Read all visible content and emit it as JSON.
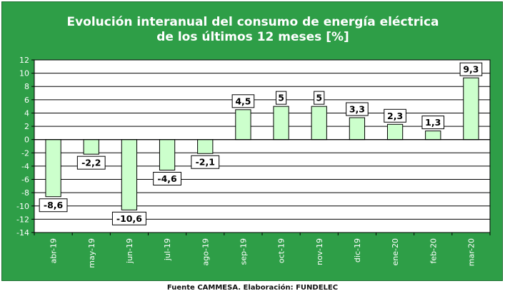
{
  "chart_data": {
    "type": "bar",
    "title_lines": [
      "Evolución interanual del consumo  de energía eléctrica",
      "de los últimos 12 meses [%]"
    ],
    "categories": [
      "abr-19",
      "may-19",
      "jun-19",
      "jul-19",
      "ago-19",
      "sep-19",
      "oct-19",
      "nov-19",
      "dic-19",
      "ene-20",
      "feb-20",
      "mar-20"
    ],
    "values": [
      -8.6,
      -2.2,
      -10.6,
      -4.6,
      -2.1,
      4.5,
      5,
      5,
      3.3,
      2.3,
      1.3,
      9.3
    ],
    "data_labels": [
      "-8,6",
      "-2,2",
      "-10,6",
      "-4,6",
      "-2,1",
      "4,5",
      "5",
      "5",
      "3,3",
      "2,3",
      "1,3",
      "9,3"
    ],
    "ylim": [
      -14,
      12
    ],
    "yticks": [
      12,
      10,
      8,
      6,
      4,
      2,
      0,
      -2,
      -4,
      -6,
      -8,
      -10,
      -12,
      -14
    ],
    "grid": true,
    "xlabel": "",
    "ylabel": ""
  },
  "source": "Fuente CAMMESA. Elaboración: FUNDELEC",
  "colors": {
    "panel_bg": "#2e9e47",
    "plot_bg": "#ffffff",
    "bar_fill": "#ccffcc",
    "bar_stroke": "#000000",
    "grid": "#000000",
    "axis_text": "#ffffff",
    "title_text": "#ffffff"
  }
}
